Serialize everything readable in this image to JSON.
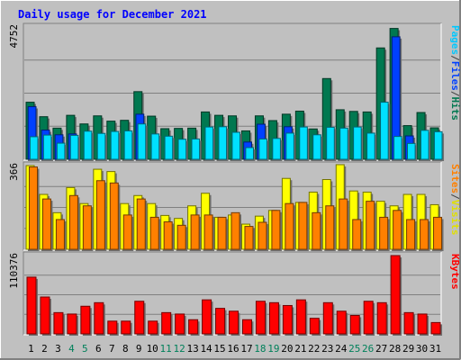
{
  "chart_data": {
    "type": "bar",
    "title": "Daily usage for December 2021",
    "categories": [
      "1",
      "2",
      "3",
      "4",
      "5",
      "6",
      "7",
      "8",
      "9",
      "10",
      "11",
      "12",
      "13",
      "14",
      "15",
      "16",
      "17",
      "18",
      "19",
      "20",
      "21",
      "22",
      "23",
      "24",
      "25",
      "26",
      "27",
      "28",
      "29",
      "30",
      "31"
    ],
    "weekend_days": [
      "4",
      "5",
      "11",
      "12",
      "18",
      "19",
      "25",
      "26"
    ],
    "panels": [
      {
        "name": "hits-files-pages",
        "ymax_label": "4752",
        "ymax": 4752,
        "series": [
          {
            "name": "Hits",
            "color": "#007850",
            "values": [
              2050,
              1530,
              1120,
              1580,
              1270,
              1560,
              1370,
              1400,
              2430,
              1550,
              1100,
              1110,
              1120,
              1700,
              1580,
              1560,
              1020,
              1560,
              1390,
              1620,
              1730,
              1090,
              2900,
              1780,
              1720,
              1700,
              4000,
              4700,
              1210,
              1680,
              1130
            ]
          },
          {
            "name": "Files",
            "color": "#0040ff",
            "values": [
              1890,
              1050,
              880,
              910,
              0,
              0,
              0,
              0,
              1620,
              0,
              0,
              0,
              0,
              0,
              0,
              0,
              620,
              1260,
              0,
              1170,
              0,
              0,
              0,
              0,
              0,
              0,
              0,
              4400,
              840,
              0,
              0
            ]
          },
          {
            "name": "Pages",
            "color": "#00e0ff",
            "values": [
              810,
              870,
              580,
              860,
              1010,
              930,
              1000,
              1020,
              1270,
              910,
              830,
              720,
              730,
              1160,
              1170,
              970,
              420,
              730,
              750,
              940,
              1160,
              880,
              1150,
              1120,
              1160,
              940,
              2050,
              820,
              570,
              1040,
              990
            ]
          }
        ],
        "legend": [
          "Pages",
          "/",
          "Files",
          "/",
          "Hits"
        ],
        "legend_colors": [
          "#00c8ff",
          "#404040",
          "#0040ff",
          "#404040",
          "#007850"
        ]
      },
      {
        "name": "visits-sites",
        "ymax_label": "366",
        "ymax": 366,
        "series": [
          {
            "name": "Visits",
            "color": "#ffff00",
            "values": [
              366,
              240,
              160,
              270,
              200,
              350,
              340,
              200,
              235,
              200,
              148,
              135,
              190,
              245,
              140,
              150,
              110,
              145,
              170,
              310,
              205,
              250,
              305,
              370,
              255,
              250,
              210,
              190,
              240,
              240,
              195
            ]
          },
          {
            "name": "Sites",
            "color": "#ff8000",
            "values": [
              360,
              220,
              130,
              235,
              190,
              300,
              290,
              150,
              220,
              140,
              120,
              105,
              150,
              150,
              140,
              160,
              100,
              118,
              170,
              200,
              205,
              160,
              190,
              220,
              130,
              210,
              140,
              170,
              130,
              130,
              140
            ]
          }
        ],
        "legend": [
          "Sites",
          "/",
          "Visits"
        ],
        "legend_colors": [
          "#ff8000",
          "#404040",
          "#e0e000"
        ]
      },
      {
        "name": "kbytes",
        "ymax_label": "110376",
        "ymax": 110376,
        "series": [
          {
            "name": "KBytes",
            "color": "#ff0000",
            "values": [
              80000,
              52000,
              30000,
              28000,
              39000,
              44000,
              18000,
              18000,
              46000,
              18000,
              30000,
              28000,
              20000,
              48000,
              36000,
              32000,
              20000,
              46000,
              44000,
              40000,
              48000,
              22000,
              44000,
              32000,
              26000,
              46000,
              44000,
              110376,
              30000,
              28000,
              16000
            ]
          }
        ],
        "legend": [
          "KBytes"
        ],
        "legend_colors": [
          "#ff0000"
        ]
      }
    ]
  }
}
